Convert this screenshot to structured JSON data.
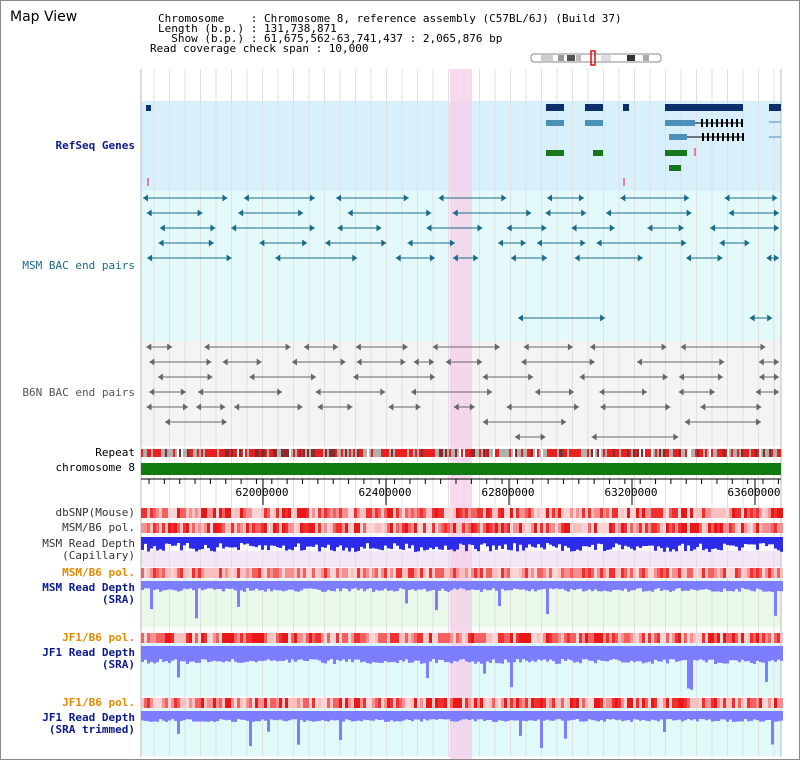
{
  "header": {
    "title": "Map View",
    "info_lines": [
      "Chromosome    : Chromosome 8, reference assembly (C57BL/6J) (Build 37)",
      "Length (b.p.) : 131,738,871",
      "  Show (b.p.) : 61,675,562-63,741,437 : 2,065,876 bp",
      "Read coverage check span : 10,000"
    ]
  },
  "tracks": {
    "refseq": "RefSeq Genes",
    "msm_bac": "MSM BAC end pairs",
    "b6n_bac": "B6N BAC end pairs",
    "repeat": "Repeat",
    "chromosome": "chromosome 8",
    "dbsnp": "dbSNP(Mouse)",
    "msm_b6_pol": "MSM/B6 pol.",
    "msm_depth_cap_1": "MSM Read Depth",
    "msm_depth_cap_2": "(Capillary)",
    "msm_b6_pol_2": "MSM/B6 pol.",
    "msm_depth_sra_1": "MSM Read Depth",
    "msm_depth_sra_2": "(SRA)",
    "jf1_b6_pol": "JF1/B6 pol.",
    "jf1_depth_sra_1": "JF1 Read Depth",
    "jf1_depth_sra_2": "(SRA)",
    "jf1_b6_pol_2": "JF1/B6 pol.",
    "jf1_depth_trim_1": "JF1 Read Depth",
    "jf1_depth_trim_2": "(SRA trimmed)"
  },
  "axis": {
    "ticks": [
      "62000000",
      "62400000",
      "62800000",
      "63200000",
      "63600000"
    ]
  },
  "colors": {
    "refseq_bg": "#d8f0fb",
    "msm_bg": "#e4fafa",
    "highlight": "#f5cdea",
    "gene_dark": "#0a2f6b",
    "gene_mid": "#4a90b8",
    "gene_green": "#16781a",
    "bac_msm": "#1a6a8a",
    "bac_b6n": "#666666",
    "chrom_green": "#117a11",
    "depth_blue": "#2b2be8",
    "depth_light": "#7d7dff",
    "label_navy": "#0a1a8c",
    "label_orange": "#e38a00",
    "label_teal": "#1a6a8a"
  }
}
